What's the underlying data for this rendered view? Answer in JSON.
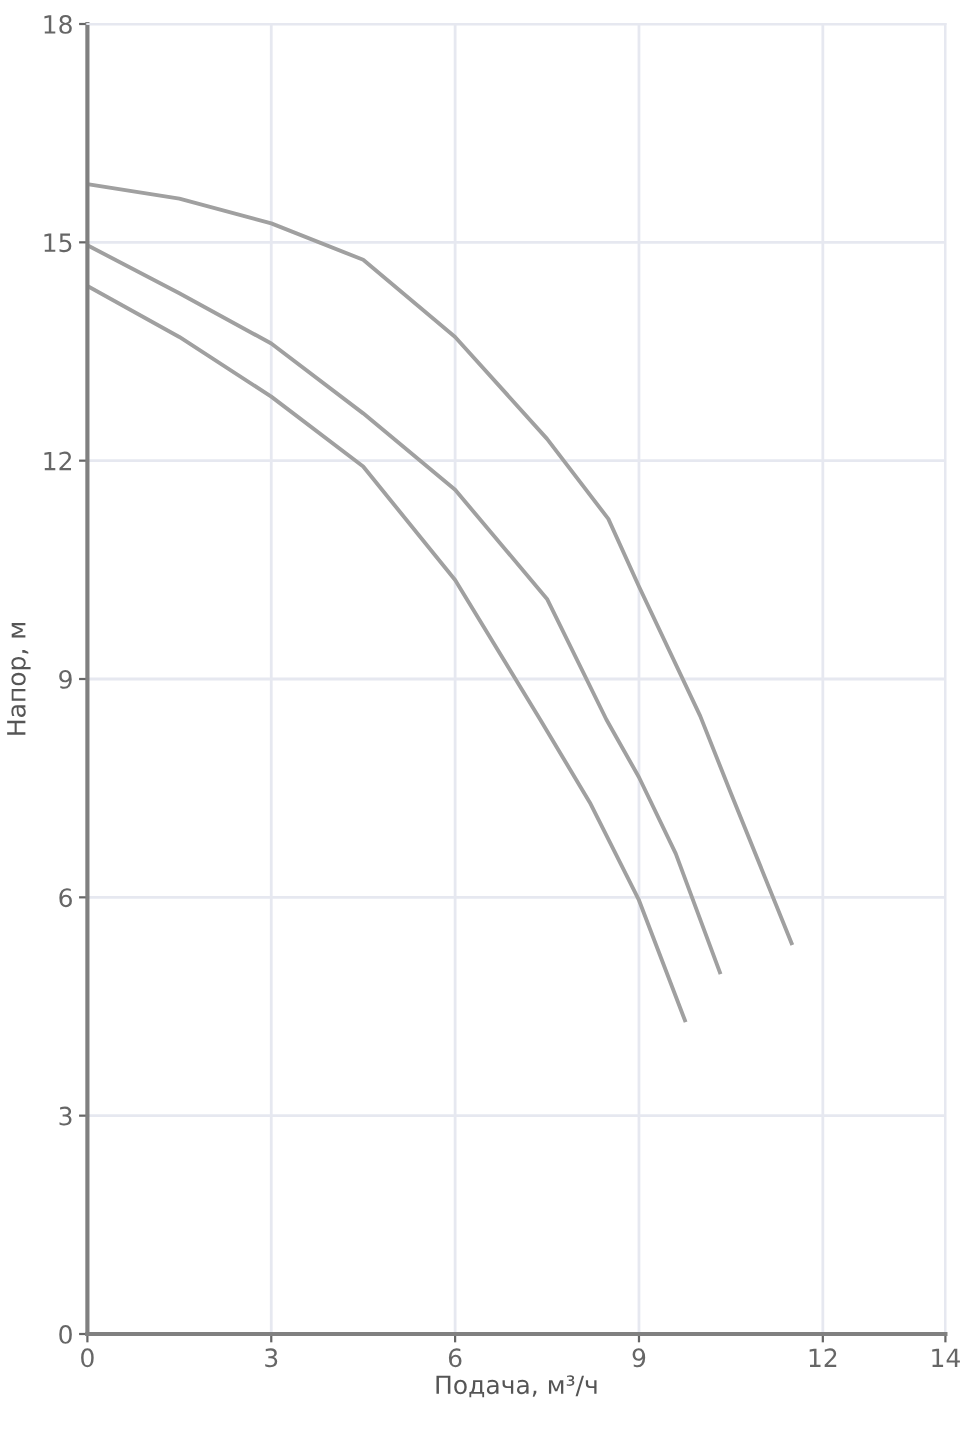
{
  "chart_data": {
    "type": "line",
    "xlabel": "Подача, м³/ч",
    "ylabel": "Напор, м",
    "xlim": [
      0,
      14
    ],
    "ylim": [
      0,
      18
    ],
    "xticks": [
      0,
      3,
      6,
      9,
      12,
      14
    ],
    "yticks": [
      0,
      3,
      6,
      9,
      12,
      15,
      18
    ],
    "grid": true,
    "marker": "none",
    "line_style": "solid",
    "series": [
      {
        "color": "#a0a0a0",
        "x": [
          0,
          1.5,
          3,
          4.5,
          6,
          7.5,
          8.5,
          9,
          10,
          10.5,
          11.49
        ],
        "values": [
          15.8,
          15.6,
          15.26,
          14.76,
          13.7,
          12.3,
          11.2,
          10.27,
          8.49,
          7.43,
          5.37
        ]
      },
      {
        "color": "#a0a0a0",
        "x": [
          0,
          1.5,
          3,
          4.5,
          6,
          7.5,
          8.47,
          9,
          9.6,
          10.32
        ],
        "values": [
          14.96,
          14.3,
          13.61,
          12.65,
          11.6,
          10.1,
          8.44,
          7.65,
          6.6,
          4.97
        ]
      },
      {
        "color": "#a0a0a0",
        "x": [
          0,
          1.5,
          3,
          4.5,
          6,
          7.39,
          8.2,
          9,
          9.75
        ],
        "values": [
          14.4,
          13.7,
          12.88,
          11.92,
          10.36,
          8.44,
          7.3,
          5.96,
          4.31
        ]
      }
    ]
  }
}
